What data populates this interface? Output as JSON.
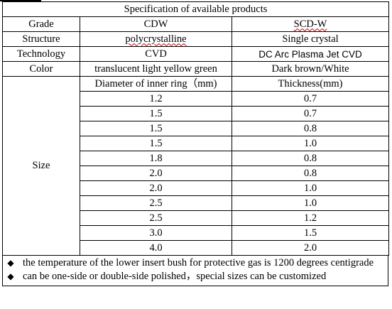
{
  "title": "Specification of available products",
  "grade": {
    "label": "Grade",
    "col1": "CDW",
    "col2": "SCD-W"
  },
  "structure": {
    "label": "Structure",
    "col1": "polycrystalline",
    "col2": "Single crystal"
  },
  "technology": {
    "label": "Technology",
    "col1": "CVD",
    "col2": "DC Arc Plasma Jet CVD"
  },
  "color": {
    "label": "Color",
    "col1": "translucent light yellow green",
    "col2": "Dark brown/White"
  },
  "size": {
    "label": "Size",
    "header1": "Diameter of inner ring（mm)",
    "header2": "Thickness(mm)",
    "rows": [
      {
        "diameter": "1.2",
        "thickness": "0.7"
      },
      {
        "diameter": "1.5",
        "thickness": "0.7"
      },
      {
        "diameter": "1.5",
        "thickness": "0.8"
      },
      {
        "diameter": "1.5",
        "thickness": "1.0"
      },
      {
        "diameter": "1.8",
        "thickness": "0.8"
      },
      {
        "diameter": "2.0",
        "thickness": "0.8"
      },
      {
        "diameter": "2.0",
        "thickness": "1.0"
      },
      {
        "diameter": "2.5",
        "thickness": "1.0"
      },
      {
        "diameter": "2.5",
        "thickness": "1.2"
      },
      {
        "diameter": "3.0",
        "thickness": "1.5"
      },
      {
        "diameter": "4.0",
        "thickness": "2.0"
      }
    ]
  },
  "notes": [
    {
      "bullet_icon": "black-diamond-icon",
      "text": "the temperature of the lower insert bush for protective gas is 1200 degrees centigrade"
    },
    {
      "bullet_icon": "black-diamond-icon",
      "text": "can be one-side or double-side polished，special sizes can be customized"
    }
  ],
  "colors": {
    "border": "#000000",
    "spellcheck_underline": "#c00000"
  }
}
